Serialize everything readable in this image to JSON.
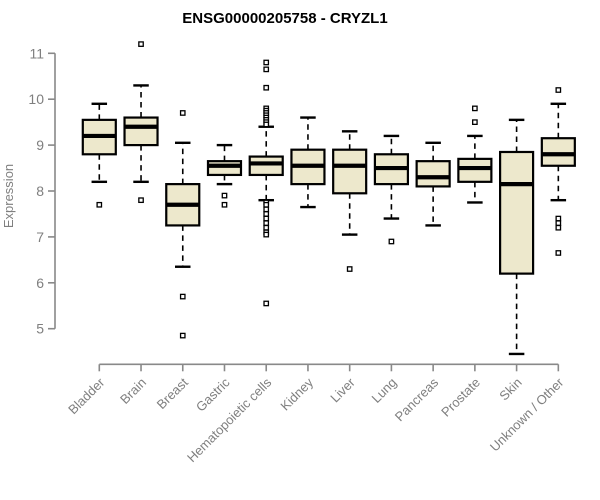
{
  "title": "ENSG00000205758 - CRYZL1",
  "colors": {
    "background": "#ffffff",
    "box_fill": "#EDE8CC",
    "box_stroke": "#000000",
    "median": "#000000",
    "whisker": "#000000",
    "outlier_stroke": "#000000",
    "outlier_fill": "#ffffff",
    "axis_line": "#898989",
    "tick_text": "#7f7f7f",
    "title_text": "#000000"
  },
  "chart_data": {
    "type": "boxplot",
    "title": "ENSG00000205758 - CRYZL1",
    "xlabel": "",
    "ylabel": "Expression",
    "ylim": [
      5,
      11
    ],
    "yticks": [
      5,
      6,
      7,
      8,
      9,
      10,
      11
    ],
    "grid": false,
    "legend": "none",
    "x_tick_rotation_deg": 45,
    "categories": [
      "Bladder",
      "Brain",
      "Breast",
      "Gastric",
      "Hematopoietic cells",
      "Kidney",
      "Liver",
      "Lung",
      "Pancreas",
      "Prostate",
      "Skin",
      "Unknown / Other"
    ],
    "boxes": [
      {
        "category": "Bladder",
        "whisker_low": 8.2,
        "q1": 8.8,
        "median": 9.2,
        "q3": 9.55,
        "whisker_high": 9.9,
        "outliers": [
          7.7
        ]
      },
      {
        "category": "Brain",
        "whisker_low": 8.2,
        "q1": 9.0,
        "median": 9.4,
        "q3": 9.6,
        "whisker_high": 10.3,
        "outliers": [
          11.2,
          7.8
        ]
      },
      {
        "category": "Breast",
        "whisker_low": 6.35,
        "q1": 7.25,
        "median": 7.7,
        "q3": 8.15,
        "whisker_high": 9.05,
        "outliers": [
          9.7,
          5.7,
          4.85
        ]
      },
      {
        "category": "Gastric",
        "whisker_low": 8.15,
        "q1": 8.35,
        "median": 8.55,
        "q3": 8.65,
        "whisker_high": 9.0,
        "outliers": [
          7.9,
          7.7
        ]
      },
      {
        "category": "Hematopoietic cells",
        "whisker_low": 7.8,
        "q1": 8.35,
        "median": 8.6,
        "q3": 8.75,
        "whisker_high": 9.4,
        "outliers": [
          10.8,
          10.65,
          10.25,
          9.8,
          9.75,
          9.7,
          9.65,
          9.6,
          9.55,
          9.5,
          9.45,
          7.75,
          7.7,
          7.6,
          7.5,
          7.4,
          7.3,
          7.2,
          7.1,
          7.05,
          5.55
        ]
      },
      {
        "category": "Kidney",
        "whisker_low": 7.65,
        "q1": 8.15,
        "median": 8.55,
        "q3": 8.9,
        "whisker_high": 9.6,
        "outliers": []
      },
      {
        "category": "Liver",
        "whisker_low": 7.05,
        "q1": 7.95,
        "median": 8.55,
        "q3": 8.9,
        "whisker_high": 9.3,
        "outliers": [
          6.3
        ]
      },
      {
        "category": "Lung",
        "whisker_low": 7.4,
        "q1": 8.15,
        "median": 8.5,
        "q3": 8.8,
        "whisker_high": 9.2,
        "outliers": [
          6.9
        ]
      },
      {
        "category": "Pancreas",
        "whisker_low": 7.25,
        "q1": 8.1,
        "median": 8.3,
        "q3": 8.65,
        "whisker_high": 9.05,
        "outliers": []
      },
      {
        "category": "Prostate",
        "whisker_low": 7.75,
        "q1": 8.2,
        "median": 8.5,
        "q3": 8.7,
        "whisker_high": 9.2,
        "outliers": [
          9.8,
          9.5
        ]
      },
      {
        "category": "Skin",
        "whisker_low": 4.45,
        "q1": 6.2,
        "median": 8.15,
        "q3": 8.85,
        "whisker_high": 9.55,
        "outliers": []
      },
      {
        "category": "Unknown / Other",
        "whisker_low": 7.8,
        "q1": 8.55,
        "median": 8.8,
        "q3": 9.15,
        "whisker_high": 9.9,
        "outliers": [
          10.2,
          7.4,
          7.3,
          7.2,
          6.65
        ]
      }
    ]
  }
}
